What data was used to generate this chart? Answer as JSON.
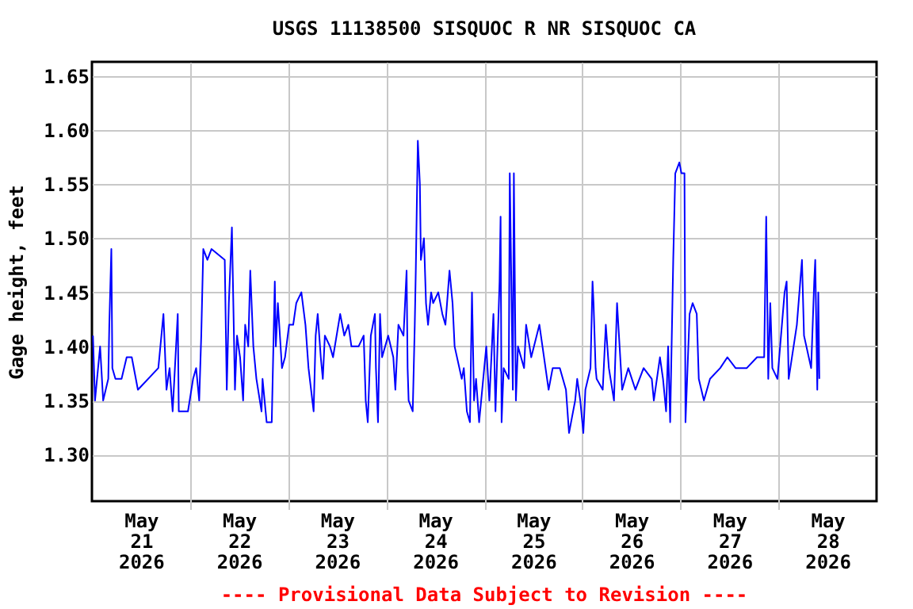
{
  "chart_data": {
    "type": "line",
    "title": "USGS 11138500 SISQUOC R NR SISQUOC CA",
    "ylabel": "Gage height, feet",
    "annotations": [
      "---- Provisional Data Subject to Revision ----"
    ],
    "xlim": [
      "2026-05-21T00:00",
      "2026-05-29T00:00"
    ],
    "xticks": [
      {
        "value": "2026-05-21T12:00",
        "label": "May\n21\n2026"
      },
      {
        "value": "2026-05-22T00:00",
        "label": null
      },
      {
        "value": "2026-05-22T12:00",
        "label": "May\n22\n2026"
      },
      {
        "value": "2026-05-23T00:00",
        "label": null
      },
      {
        "value": "2026-05-23T12:00",
        "label": "May\n23\n2026"
      },
      {
        "value": "2026-05-24T00:00",
        "label": null
      },
      {
        "value": "2026-05-24T12:00",
        "label": "May\n24\n2026"
      },
      {
        "value": "2026-05-25T00:00",
        "label": null
      },
      {
        "value": "2026-05-25T12:00",
        "label": "May\n25\n2026"
      },
      {
        "value": "2026-05-26T00:00",
        "label": null
      },
      {
        "value": "2026-05-26T12:00",
        "label": "May\n26\n2026"
      },
      {
        "value": "2026-05-27T00:00",
        "label": null
      },
      {
        "value": "2026-05-27T12:00",
        "label": "May\n27\n2026"
      },
      {
        "value": "2026-05-28T00:00",
        "label": null
      },
      {
        "value": "2026-05-28T12:00",
        "label": "May\n28\n2026"
      }
    ],
    "ylim": [
      1.257,
      1.663
    ],
    "yticks": [
      {
        "value": 1.3,
        "label": "1.30"
      },
      {
        "value": 1.35,
        "label": "1.35"
      },
      {
        "value": 1.4,
        "label": "1.40"
      },
      {
        "value": 1.45,
        "label": "1.45"
      },
      {
        "value": 1.5,
        "label": "1.50"
      },
      {
        "value": 1.55,
        "label": "1.55"
      },
      {
        "value": 1.6,
        "label": "1.60"
      },
      {
        "value": 1.65,
        "label": "1.65"
      }
    ],
    "grid": true,
    "x": [
      "2026-05-21T00:15",
      "2026-05-21T00:45",
      "2026-05-21T01:45",
      "2026-05-21T02:00",
      "2026-05-21T02:45",
      "2026-05-21T04:00",
      "2026-05-21T04:15",
      "2026-05-21T04:45",
      "2026-05-21T05:00",
      "2026-05-21T05:45",
      "2026-05-21T07:15",
      "2026-05-21T08:30",
      "2026-05-21T09:45",
      "2026-05-21T11:15",
      "2026-05-21T16:15",
      "2026-05-21T17:30",
      "2026-05-21T18:15",
      "2026-05-21T19:00",
      "2026-05-21T19:45",
      "2026-05-21T21:00",
      "2026-05-21T21:15",
      "2026-05-21T23:30",
      "2026-05-22T00:45",
      "2026-05-22T01:30",
      "2026-05-22T02:15",
      "2026-05-22T02:45",
      "2026-05-22T03:15",
      "2026-05-22T04:15",
      "2026-05-22T05:15",
      "2026-05-22T08:30",
      "2026-05-22T09:00",
      "2026-05-22T09:30",
      "2026-05-22T10:15",
      "2026-05-22T11:00",
      "2026-05-22T11:30",
      "2026-05-22T12:15",
      "2026-05-22T13:00",
      "2026-05-22T13:30",
      "2026-05-22T14:15",
      "2026-05-22T14:45",
      "2026-05-22T15:30",
      "2026-05-22T16:15",
      "2026-05-22T17:30",
      "2026-05-22T17:45",
      "2026-05-22T18:45",
      "2026-05-22T20:00",
      "2026-05-22T20:45",
      "2026-05-22T21:00",
      "2026-05-22T21:30",
      "2026-05-22T22:30",
      "2026-05-22T23:15",
      "2026-05-23T00:15",
      "2026-05-23T01:15",
      "2026-05-23T02:00",
      "2026-05-23T03:15",
      "2026-05-23T04:15",
      "2026-05-23T05:00",
      "2026-05-23T06:15",
      "2026-05-23T06:45",
      "2026-05-23T07:15",
      "2026-05-23T08:00",
      "2026-05-23T08:30",
      "2026-05-23T09:00",
      "2026-05-23T10:15",
      "2026-05-23T11:00",
      "2026-05-23T12:45",
      "2026-05-23T13:45",
      "2026-05-23T14:45",
      "2026-05-23T15:30",
      "2026-05-23T17:15",
      "2026-05-23T18:30",
      "2026-05-23T19:00",
      "2026-05-23T19:30",
      "2026-05-23T20:15",
      "2026-05-23T21:15",
      "2026-05-23T21:30",
      "2026-05-23T22:00",
      "2026-05-23T22:30",
      "2026-05-23T23:00",
      "2026-05-24T00:30",
      "2026-05-24T01:45",
      "2026-05-24T02:15",
      "2026-05-24T03:00",
      "2026-05-24T04:15",
      "2026-05-24T05:00",
      "2026-05-24T05:15",
      "2026-05-24T05:30",
      "2026-05-24T06:30",
      "2026-05-24T07:00",
      "2026-05-24T07:15",
      "2026-05-24T07:45",
      "2026-05-24T08:15",
      "2026-05-24T08:30",
      "2026-05-24T09:15",
      "2026-05-24T09:45",
      "2026-05-24T10:15",
      "2026-05-24T11:00",
      "2026-05-24T11:30",
      "2026-05-24T12:45",
      "2026-05-24T13:45",
      "2026-05-24T14:30",
      "2026-05-24T15:30",
      "2026-05-24T16:15",
      "2026-05-24T16:45",
      "2026-05-24T18:30",
      "2026-05-24T19:00",
      "2026-05-24T19:45",
      "2026-05-24T20:30",
      "2026-05-24T21:00",
      "2026-05-24T21:30",
      "2026-05-24T22:00",
      "2026-05-24T22:45",
      "2026-05-24T23:15",
      "2026-05-25T00:00",
      "2026-05-25T00:30",
      "2026-05-25T01:15",
      "2026-05-25T02:15",
      "2026-05-25T02:45",
      "2026-05-25T03:45",
      "2026-05-25T04:00",
      "2026-05-25T04:15",
      "2026-05-25T04:45",
      "2026-05-25T06:00",
      "2026-05-25T06:15",
      "2026-05-25T07:00",
      "2026-05-25T07:15",
      "2026-05-25T07:45",
      "2026-05-25T08:15",
      "2026-05-25T09:45",
      "2026-05-25T10:15",
      "2026-05-25T11:30",
      "2026-05-25T13:30",
      "2026-05-25T15:00",
      "2026-05-25T15:45",
      "2026-05-25T16:45",
      "2026-05-25T18:30",
      "2026-05-25T20:00",
      "2026-05-25T20:45",
      "2026-05-25T21:15",
      "2026-05-25T22:15",
      "2026-05-25T22:45",
      "2026-05-25T23:30",
      "2026-05-26T00:15",
      "2026-05-26T00:45",
      "2026-05-26T02:00",
      "2026-05-26T02:30",
      "2026-05-26T02:45",
      "2026-05-26T03:15",
      "2026-05-26T03:30",
      "2026-05-26T05:00",
      "2026-05-26T05:45",
      "2026-05-26T06:30",
      "2026-05-26T07:45",
      "2026-05-26T08:30",
      "2026-05-26T09:45",
      "2026-05-26T11:15",
      "2026-05-26T13:00",
      "2026-05-26T15:00",
      "2026-05-26T17:00",
      "2026-05-26T17:30",
      "2026-05-26T19:00",
      "2026-05-26T19:45",
      "2026-05-26T20:30",
      "2026-05-26T21:00",
      "2026-05-26T21:30",
      "2026-05-26T22:15",
      "2026-05-26T22:45",
      "2026-05-26T23:45",
      "2026-05-27T00:15",
      "2026-05-27T01:00",
      "2026-05-27T01:15",
      "2026-05-27T01:45",
      "2026-05-27T02:15",
      "2026-05-27T03:00",
      "2026-05-27T04:00",
      "2026-05-27T04:30",
      "2026-05-27T05:45",
      "2026-05-27T07:15",
      "2026-05-27T09:45",
      "2026-05-27T11:30",
      "2026-05-27T13:30",
      "2026-05-27T16:15",
      "2026-05-27T18:45",
      "2026-05-27T20:30",
      "2026-05-27T21:00",
      "2026-05-27T21:30",
      "2026-05-27T22:00",
      "2026-05-27T22:30",
      "2026-05-27T23:45",
      "2026-05-28T01:30",
      "2026-05-28T02:00",
      "2026-05-28T02:30",
      "2026-05-28T04:30",
      "2026-05-28T05:45",
      "2026-05-28T06:15",
      "2026-05-28T08:00",
      "2026-05-28T08:45",
      "2026-05-28T09:00",
      "2026-05-28T09:30",
      "2026-05-28T09:45",
      "2026-05-28T10:00"
    ],
    "series": [
      {
        "color": "#0000ff",
        "values": [
          1.41,
          1.35,
          1.39,
          1.4,
          1.35,
          1.37,
          1.42,
          1.49,
          1.38,
          1.37,
          1.37,
          1.39,
          1.39,
          1.36,
          1.38,
          1.43,
          1.36,
          1.38,
          1.34,
          1.43,
          1.34,
          1.34,
          1.37,
          1.38,
          1.35,
          1.41,
          1.49,
          1.48,
          1.49,
          1.48,
          1.36,
          1.44,
          1.51,
          1.36,
          1.41,
          1.39,
          1.35,
          1.42,
          1.4,
          1.47,
          1.4,
          1.37,
          1.34,
          1.37,
          1.33,
          1.33,
          1.46,
          1.4,
          1.44,
          1.38,
          1.39,
          1.42,
          1.42,
          1.44,
          1.45,
          1.42,
          1.38,
          1.34,
          1.41,
          1.43,
          1.39,
          1.37,
          1.41,
          1.4,
          1.39,
          1.43,
          1.41,
          1.42,
          1.4,
          1.4,
          1.41,
          1.35,
          1.33,
          1.41,
          1.43,
          1.38,
          1.33,
          1.43,
          1.39,
          1.41,
          1.39,
          1.36,
          1.42,
          1.41,
          1.47,
          1.38,
          1.35,
          1.34,
          1.42,
          1.47,
          1.59,
          1.55,
          1.48,
          1.5,
          1.44,
          1.42,
          1.45,
          1.44,
          1.45,
          1.43,
          1.42,
          1.47,
          1.44,
          1.4,
          1.37,
          1.38,
          1.34,
          1.33,
          1.45,
          1.35,
          1.37,
          1.33,
          1.35,
          1.38,
          1.4,
          1.35,
          1.43,
          1.34,
          1.46,
          1.52,
          1.33,
          1.38,
          1.37,
          1.56,
          1.36,
          1.56,
          1.35,
          1.4,
          1.38,
          1.42,
          1.39,
          1.42,
          1.38,
          1.36,
          1.38,
          1.38,
          1.36,
          1.32,
          1.33,
          1.35,
          1.37,
          1.35,
          1.32,
          1.36,
          1.38,
          1.46,
          1.44,
          1.38,
          1.37,
          1.36,
          1.42,
          1.38,
          1.35,
          1.44,
          1.36,
          1.38,
          1.36,
          1.38,
          1.37,
          1.35,
          1.39,
          1.37,
          1.34,
          1.4,
          1.33,
          1.48,
          1.56,
          1.57,
          1.56,
          1.56,
          1.33,
          1.38,
          1.43,
          1.44,
          1.43,
          1.37,
          1.35,
          1.37,
          1.38,
          1.39,
          1.38,
          1.38,
          1.39,
          1.39,
          1.52,
          1.37,
          1.44,
          1.38,
          1.37,
          1.45,
          1.46,
          1.37,
          1.42,
          1.48,
          1.41,
          1.38,
          1.46,
          1.48,
          1.36,
          1.45,
          1.37
        ]
      }
    ]
  }
}
